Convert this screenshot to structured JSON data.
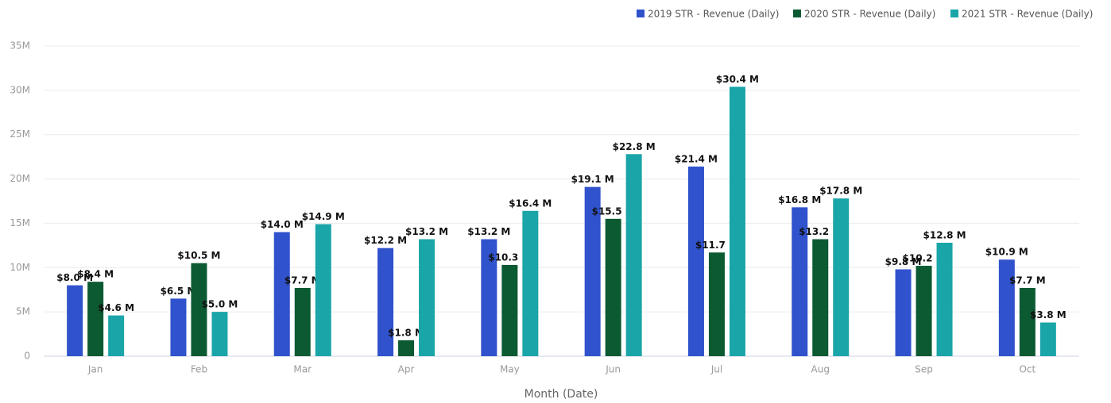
{
  "chart_data": {
    "type": "bar",
    "x_label": "Month (Date)",
    "categories": [
      "Jan",
      "Feb",
      "Mar",
      "Apr",
      "May",
      "Jun",
      "Jul",
      "Aug",
      "Sep",
      "Oct"
    ],
    "series": [
      {
        "name": "2019 STR - Revenue (Daily)",
        "color": "#3052cc",
        "values": [
          8.0,
          6.5,
          14.0,
          12.2,
          13.2,
          19.1,
          21.4,
          16.8,
          9.8,
          10.9
        ],
        "value_labels": [
          "$8.0 M",
          "$6.5 M",
          "$14.0 M",
          "$12.2 M",
          "$13.2 M",
          "$19.1 M",
          "$21.4 M",
          "$16.8 M",
          "$9.8 M",
          "$10.9 M"
        ]
      },
      {
        "name": "2020 STR - Revenue (Daily)",
        "color": "#0b5a32",
        "values": [
          8.4,
          10.5,
          7.7,
          1.8,
          10.3,
          15.5,
          11.7,
          13.2,
          10.2,
          7.7
        ],
        "value_labels": [
          "$8.4 M",
          "$10.5 M",
          "$7.7 M",
          "$1.8 M",
          "$10.3 M",
          "$15.5 M",
          "$11.7 M",
          "$13.2 M",
          "$10.2 M",
          "$7.7 M"
        ]
      },
      {
        "name": "2021 STR - Revenue (Daily)",
        "color": "#1aa5a8",
        "values": [
          4.6,
          5.0,
          14.9,
          13.2,
          16.4,
          22.8,
          30.4,
          17.8,
          12.8,
          3.8
        ],
        "value_labels": [
          "$4.6 M",
          "$5.0 M",
          "$14.9 M",
          "$13.2 M",
          "$16.4 M",
          "$22.8 M",
          "$30.4 M",
          "$17.8 M",
          "$12.8 M",
          "$3.8 M"
        ]
      }
    ],
    "ylim": [
      0,
      35
    ],
    "yticks": [
      0,
      {
        "value": 5,
        "label": "5M"
      },
      {
        "value": 10,
        "label": "10M"
      },
      {
        "value": 15,
        "label": "15M"
      },
      {
        "value": 20,
        "label": "20M"
      },
      {
        "value": 25,
        "label": "25M"
      },
      {
        "value": 30,
        "label": "30M"
      },
      {
        "value": 35,
        "label": "35M"
      }
    ],
    "grid": true,
    "legend": "top-right"
  }
}
